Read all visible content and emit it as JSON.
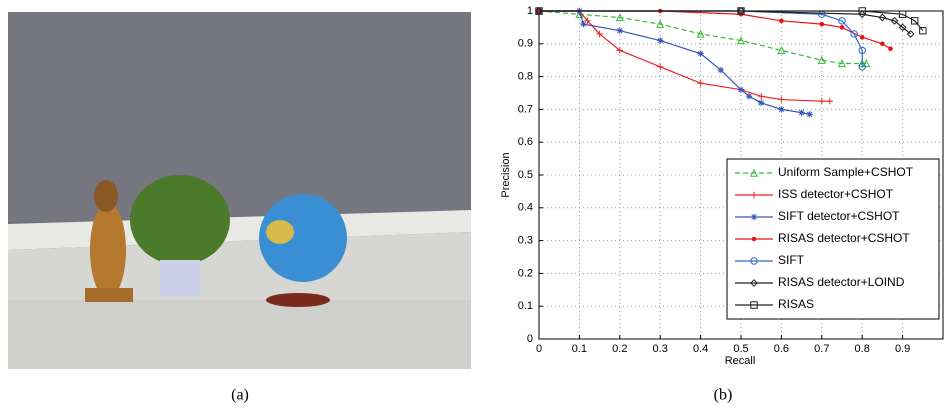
{
  "captions": [
    "(a)",
    "(b)"
  ],
  "chart_data": {
    "type": "line",
    "xlabel": "Recall",
    "ylabel": "Precision",
    "xlim": [
      0,
      1
    ],
    "xticks": [
      0,
      0.1,
      0.2,
      0.3,
      0.4,
      0.5,
      0.6,
      0.7,
      0.8,
      0.9
    ],
    "ylim": [
      0,
      1
    ],
    "yticks": [
      0,
      0.1,
      0.2,
      0.3,
      0.4,
      0.5,
      0.6,
      0.7,
      0.8,
      0.9,
      1
    ],
    "grid": true,
    "legend": "lower right",
    "series": [
      {
        "name": "Uniform Sample+CSHOT",
        "color": "#33bb33",
        "marker": "triangle",
        "dash": true,
        "x": [
          0,
          0.1,
          0.2,
          0.3,
          0.4,
          0.5,
          0.6,
          0.7,
          0.75,
          0.8,
          0.81
        ],
        "values": [
          1,
          0.99,
          0.98,
          0.96,
          0.93,
          0.91,
          0.88,
          0.85,
          0.84,
          0.84,
          0.84
        ]
      },
      {
        "name": "ISS detector+CSHOT",
        "color": "#ee2222",
        "marker": "plus",
        "x": [
          0,
          0.1,
          0.12,
          0.15,
          0.2,
          0.3,
          0.4,
          0.5,
          0.55,
          0.6,
          0.7,
          0.72
        ],
        "values": [
          1,
          1,
          0.97,
          0.93,
          0.88,
          0.83,
          0.78,
          0.76,
          0.74,
          0.73,
          0.725,
          0.725
        ]
      },
      {
        "name": "SIFT detector+CSHOT",
        "color": "#3355bb",
        "marker": "star",
        "x": [
          0,
          0.1,
          0.11,
          0.2,
          0.3,
          0.4,
          0.45,
          0.5,
          0.52,
          0.55,
          0.6,
          0.65,
          0.67
        ],
        "values": [
          1,
          1,
          0.96,
          0.94,
          0.91,
          0.87,
          0.82,
          0.76,
          0.74,
          0.72,
          0.7,
          0.69,
          0.685
        ]
      },
      {
        "name": "RISAS detector+CSHOT",
        "color": "#ee1111",
        "marker": "dot",
        "x": [
          0,
          0.3,
          0.5,
          0.6,
          0.7,
          0.75,
          0.8,
          0.85,
          0.87
        ],
        "values": [
          1,
          1,
          0.99,
          0.97,
          0.96,
          0.95,
          0.92,
          0.9,
          0.885
        ]
      },
      {
        "name": "SIFT",
        "color": "#3366cc",
        "marker": "circle",
        "x": [
          0,
          0.5,
          0.7,
          0.75,
          0.78,
          0.8,
          0.8
        ],
        "values": [
          1,
          1,
          0.99,
          0.97,
          0.93,
          0.88,
          0.83
        ]
      },
      {
        "name": "RISAS detector+LOIND",
        "color": "#222222",
        "marker": "diamond",
        "x": [
          0,
          0.5,
          0.8,
          0.85,
          0.88,
          0.9,
          0.92
        ],
        "values": [
          1,
          1,
          0.99,
          0.98,
          0.97,
          0.95,
          0.93
        ]
      },
      {
        "name": "RISAS",
        "color": "#222222",
        "marker": "square",
        "x": [
          0,
          0.5,
          0.8,
          0.9,
          0.93,
          0.95
        ],
        "values": [
          1,
          1,
          1,
          0.99,
          0.97,
          0.94
        ]
      }
    ]
  }
}
